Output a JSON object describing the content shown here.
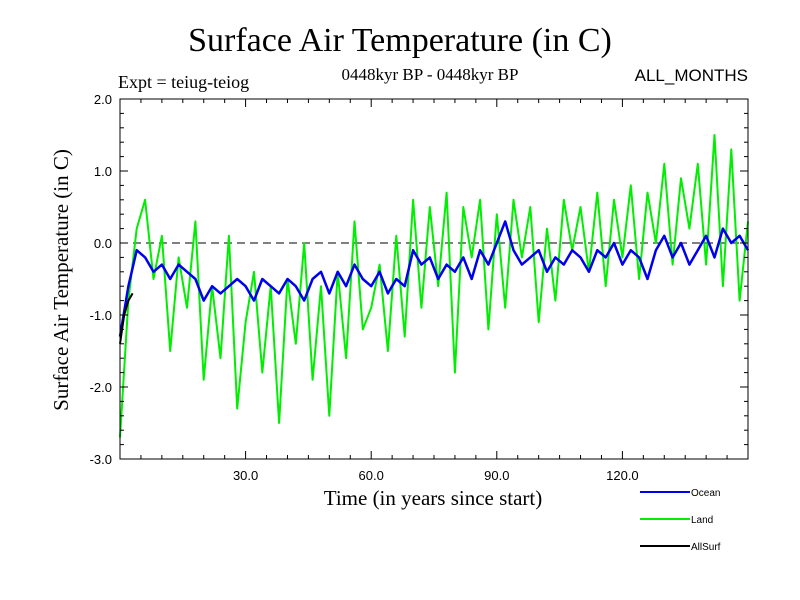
{
  "chart_data": {
    "type": "line",
    "title": "Surface Air Temperature (in C)",
    "subtitle_left": "Expt = teiug-teiog",
    "subtitle_center": "0448kyr BP - 0448kyr BP",
    "subtitle_right": "ALL_MONTHS",
    "xlabel": "Time (in years since start)",
    "ylabel": "Surface Air Temperature (in C)",
    "xlim": [
      0,
      150
    ],
    "ylim": [
      -3.0,
      2.0
    ],
    "xticks": [
      30,
      60,
      90,
      120
    ],
    "xtick_labels": [
      "30.0",
      "60.0",
      "90.0",
      "120.0"
    ],
    "yticks": [
      -3,
      -2,
      -1,
      0,
      1,
      2
    ],
    "ytick_labels": [
      "-3.0",
      "-2.0",
      "-1.0",
      "0.0",
      "1.0",
      "2.0"
    ],
    "reference_line": {
      "y": 0.0,
      "style": "dashed"
    },
    "series": [
      {
        "name": "Land",
        "color": "#00ee00",
        "x": [
          0,
          2,
          4,
          6,
          8,
          10,
          12,
          14,
          16,
          18,
          20,
          22,
          24,
          26,
          28,
          30,
          32,
          34,
          36,
          38,
          40,
          42,
          44,
          46,
          48,
          50,
          52,
          54,
          56,
          58,
          60,
          62,
          64,
          66,
          68,
          70,
          72,
          74,
          76,
          78,
          80,
          82,
          84,
          86,
          88,
          90,
          92,
          94,
          96,
          98,
          100,
          102,
          104,
          106,
          108,
          110,
          112,
          114,
          116,
          118,
          120,
          122,
          124,
          126,
          128,
          130,
          132,
          134,
          136,
          138,
          140,
          142,
          144,
          146,
          148,
          150
        ],
        "values": [
          -2.7,
          -0.8,
          0.2,
          0.6,
          -0.5,
          0.1,
          -1.5,
          -0.2,
          -0.9,
          0.3,
          -1.9,
          -0.6,
          -1.6,
          0.1,
          -2.3,
          -1.1,
          -0.4,
          -1.8,
          -0.6,
          -2.5,
          -0.5,
          -1.4,
          0.0,
          -1.9,
          -0.6,
          -2.4,
          -0.4,
          -1.6,
          0.3,
          -1.2,
          -0.9,
          -0.3,
          -1.5,
          0.1,
          -1.3,
          0.6,
          -0.9,
          0.5,
          -0.6,
          0.7,
          -1.8,
          0.5,
          -0.2,
          0.6,
          -1.2,
          0.4,
          -0.9,
          0.6,
          -0.2,
          0.5,
          -1.1,
          0.2,
          -0.8,
          0.6,
          -0.1,
          0.5,
          -0.4,
          0.7,
          -0.6,
          0.6,
          -0.2,
          0.8,
          -0.5,
          0.7,
          0.0,
          1.1,
          -0.3,
          0.9,
          0.2,
          1.1,
          -0.3,
          1.5,
          -0.6,
          1.3,
          -0.8,
          0.3
        ]
      },
      {
        "name": "Ocean",
        "color": "#0000ee",
        "x": [
          0,
          2,
          4,
          6,
          8,
          10,
          12,
          14,
          16,
          18,
          20,
          22,
          24,
          26,
          28,
          30,
          32,
          34,
          36,
          38,
          40,
          42,
          44,
          46,
          48,
          50,
          52,
          54,
          56,
          58,
          60,
          62,
          64,
          66,
          68,
          70,
          72,
          74,
          76,
          78,
          80,
          82,
          84,
          86,
          88,
          90,
          92,
          94,
          96,
          98,
          100,
          102,
          104,
          106,
          108,
          110,
          112,
          114,
          116,
          118,
          120,
          122,
          124,
          126,
          128,
          130,
          132,
          134,
          136,
          138,
          140,
          142,
          144,
          146,
          148,
          150
        ],
        "values": [
          -1.3,
          -0.6,
          -0.1,
          -0.2,
          -0.4,
          -0.3,
          -0.5,
          -0.3,
          -0.4,
          -0.5,
          -0.8,
          -0.6,
          -0.7,
          -0.6,
          -0.5,
          -0.6,
          -0.8,
          -0.5,
          -0.6,
          -0.7,
          -0.5,
          -0.6,
          -0.8,
          -0.5,
          -0.4,
          -0.7,
          -0.4,
          -0.6,
          -0.3,
          -0.5,
          -0.6,
          -0.4,
          -0.7,
          -0.5,
          -0.6,
          -0.1,
          -0.3,
          -0.2,
          -0.5,
          -0.3,
          -0.4,
          -0.2,
          -0.5,
          -0.1,
          -0.3,
          0.0,
          0.3,
          -0.1,
          -0.3,
          -0.2,
          -0.1,
          -0.4,
          -0.2,
          -0.3,
          -0.1,
          -0.2,
          -0.4,
          -0.1,
          -0.2,
          0.0,
          -0.3,
          -0.1,
          -0.2,
          -0.5,
          -0.1,
          0.1,
          -0.2,
          0.0,
          -0.3,
          -0.1,
          0.1,
          -0.2,
          0.2,
          0.0,
          0.1,
          -0.1
        ]
      },
      {
        "name": "AllSurf",
        "color": "#000000",
        "x": [
          0,
          1,
          2,
          3
        ],
        "values": [
          -1.4,
          -1.0,
          -0.8,
          -0.7
        ]
      }
    ],
    "legend": [
      {
        "name": "Ocean",
        "color": "#0000ee"
      },
      {
        "name": "Land",
        "color": "#00ee00"
      },
      {
        "name": "AllSurf",
        "color": "#000000"
      }
    ],
    "legend_placement": "bottom-right, below plot"
  }
}
